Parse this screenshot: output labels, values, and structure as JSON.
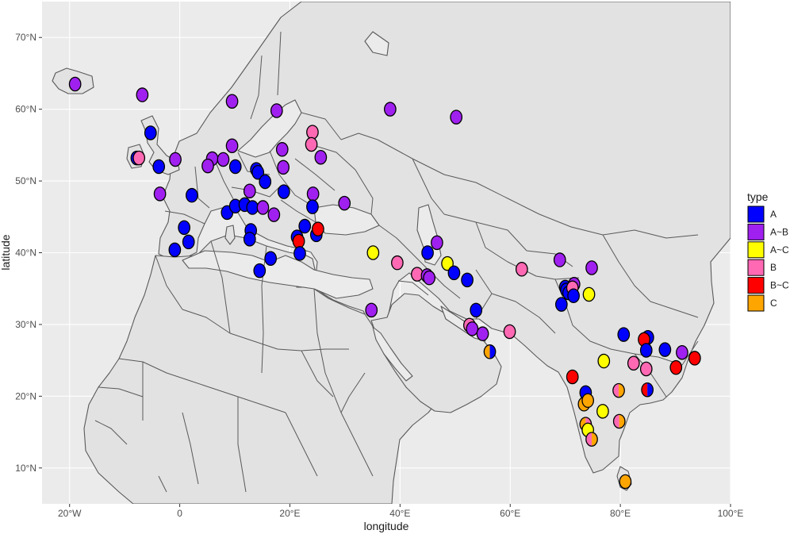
{
  "chart_data": {
    "type": "scatter",
    "xlabel": "longitude",
    "ylabel": "latitude",
    "xlim": [
      -25,
      100
    ],
    "ylim": [
      5,
      75
    ],
    "x_ticks": [
      {
        "value": -20,
        "label": "20°W"
      },
      {
        "value": 0,
        "label": "0"
      },
      {
        "value": 20,
        "label": "20°E"
      },
      {
        "value": 40,
        "label": "40°E"
      },
      {
        "value": 60,
        "label": "60°E"
      },
      {
        "value": 80,
        "label": "80°E"
      },
      {
        "value": 100,
        "label": "100°E"
      }
    ],
    "y_ticks": [
      {
        "value": 10,
        "label": "10°N"
      },
      {
        "value": 20,
        "label": "20°N"
      },
      {
        "value": 30,
        "label": "30°N"
      },
      {
        "value": 40,
        "label": "40°N"
      },
      {
        "value": 50,
        "label": "50°N"
      },
      {
        "value": 60,
        "label": "60°N"
      },
      {
        "value": 70,
        "label": "70°N"
      }
    ],
    "grid": true,
    "legend": {
      "title": "type",
      "placement": "right",
      "entries": [
        {
          "label": "A",
          "color": "#0000ff"
        },
        {
          "label": "A~B",
          "color": "#a020f0"
        },
        {
          "label": "A~C",
          "color": "#ffff00"
        },
        {
          "label": "B",
          "color": "#ff69b4"
        },
        {
          "label": "B~C",
          "color": "#ff0000"
        },
        {
          "label": "C",
          "color": "#ffa500"
        }
      ]
    },
    "colors": {
      "A": "#0000ff",
      "A~B": "#a020f0",
      "A~C": "#ffff00",
      "B": "#ff69b4",
      "B~C": "#ff0000",
      "C": "#ffa500",
      "panel": "#ebebeb",
      "land": "#e2e2e2",
      "border": "#595959",
      "grid": "#ffffff"
    },
    "points": [
      {
        "lon": -19,
        "lat": 63.5,
        "type": "A~B"
      },
      {
        "lon": -6.8,
        "lat": 62,
        "type": "A~B"
      },
      {
        "lon": 9.5,
        "lat": 61.1,
        "type": "A~B"
      },
      {
        "lon": 17.6,
        "lat": 59.8,
        "type": "A~B"
      },
      {
        "lon": 38.2,
        "lat": 60,
        "type": "A~B"
      },
      {
        "lon": 50.2,
        "lat": 58.9,
        "type": "A~B"
      },
      {
        "lon": -5.3,
        "lat": 56.7,
        "type": "A"
      },
      {
        "lon": 24.1,
        "lat": 56.8,
        "type": "B"
      },
      {
        "lon": 23.9,
        "lat": 55.1,
        "type": "B"
      },
      {
        "lon": 9.5,
        "lat": 54.9,
        "type": "A~B"
      },
      {
        "lon": 18.6,
        "lat": 54.4,
        "type": "A~B"
      },
      {
        "lon": -7.8,
        "lat": 53.2,
        "type": "A"
      },
      {
        "lon": -7.4,
        "lat": 53.2,
        "type": "B"
      },
      {
        "lon": -0.8,
        "lat": 53,
        "type": "A~B"
      },
      {
        "lon": 5.9,
        "lat": 53.1,
        "type": "A~B"
      },
      {
        "lon": 7.9,
        "lat": 53,
        "type": "A~B"
      },
      {
        "lon": 25.6,
        "lat": 53.3,
        "type": "A~B"
      },
      {
        "lon": -3.8,
        "lat": 52,
        "type": "A"
      },
      {
        "lon": 5.1,
        "lat": 52.1,
        "type": "A~B"
      },
      {
        "lon": 10.1,
        "lat": 52,
        "type": "A"
      },
      {
        "lon": 13.9,
        "lat": 51.6,
        "type": "A"
      },
      {
        "lon": 14.2,
        "lat": 51.2,
        "type": "A"
      },
      {
        "lon": 18.8,
        "lat": 51.9,
        "type": "A~B"
      },
      {
        "lon": 15.5,
        "lat": 49.9,
        "type": "A"
      },
      {
        "lon": -3.6,
        "lat": 48.2,
        "type": "A~B"
      },
      {
        "lon": 2.2,
        "lat": 48,
        "type": "A"
      },
      {
        "lon": 12.7,
        "lat": 48.6,
        "type": "A~B"
      },
      {
        "lon": 18.9,
        "lat": 48.5,
        "type": "A"
      },
      {
        "lon": 24.2,
        "lat": 48.2,
        "type": "A~B"
      },
      {
        "lon": 29.9,
        "lat": 46.9,
        "type": "A~B"
      },
      {
        "lon": 8.6,
        "lat": 45.6,
        "type": "A"
      },
      {
        "lon": 10.1,
        "lat": 46.5,
        "type": "A"
      },
      {
        "lon": 11.8,
        "lat": 46.7,
        "type": "A"
      },
      {
        "lon": 13.2,
        "lat": 46.3,
        "type": "A"
      },
      {
        "lon": 15.1,
        "lat": 46.3,
        "type": "A~B"
      },
      {
        "lon": 17.1,
        "lat": 45.3,
        "type": "A~B"
      },
      {
        "lon": 24.1,
        "lat": 46.4,
        "type": "A"
      },
      {
        "lon": 0.8,
        "lat": 43.5,
        "type": "A"
      },
      {
        "lon": 12.9,
        "lat": 43.1,
        "type": "A"
      },
      {
        "lon": 12.7,
        "lat": 41.9,
        "type": "A"
      },
      {
        "lon": 1.6,
        "lat": 41.5,
        "type": "A"
      },
      {
        "lon": -0.9,
        "lat": 40.4,
        "type": "A"
      },
      {
        "lon": 21.3,
        "lat": 42.2,
        "type": "A"
      },
      {
        "lon": 22.7,
        "lat": 43.7,
        "type": "A"
      },
      {
        "lon": 21.6,
        "lat": 41.6,
        "type": "B~C"
      },
      {
        "lon": 24.8,
        "lat": 42.5,
        "type": "A"
      },
      {
        "lon": 25.1,
        "lat": 43.3,
        "type": "B~C"
      },
      {
        "lon": 21.8,
        "lat": 39.9,
        "type": "A"
      },
      {
        "lon": 16.5,
        "lat": 39.2,
        "type": "A"
      },
      {
        "lon": 14.5,
        "lat": 37.5,
        "type": "A"
      },
      {
        "lon": 35.1,
        "lat": 40,
        "type": "A~C"
      },
      {
        "lon": 39.5,
        "lat": 38.6,
        "type": "B"
      },
      {
        "lon": 43.1,
        "lat": 37,
        "type": "B"
      },
      {
        "lon": 45,
        "lat": 40,
        "type": "A"
      },
      {
        "lon": 46.7,
        "lat": 41.4,
        "type": "A~B"
      },
      {
        "lon": 44.9,
        "lat": 36.8,
        "type": "A~B"
      },
      {
        "lon": 45.3,
        "lat": 36.5,
        "type": "A~B"
      },
      {
        "lon": 48.6,
        "lat": 38.5,
        "type": "A~C"
      },
      {
        "lon": 49.8,
        "lat": 37.2,
        "type": "A"
      },
      {
        "lon": 52.2,
        "lat": 36.2,
        "type": "A"
      },
      {
        "lon": 62.1,
        "lat": 37.7,
        "type": "B"
      },
      {
        "lon": 34.8,
        "lat": 32,
        "type": "A~B"
      },
      {
        "lon": 53.8,
        "lat": 32,
        "type": "A"
      },
      {
        "lon": 52.6,
        "lat": 29.9,
        "type": "B"
      },
      {
        "lon": 53.1,
        "lat": 29.4,
        "type": "A~B"
      },
      {
        "lon": 55,
        "lat": 28.7,
        "type": "A~B"
      },
      {
        "lon": 59.9,
        "lat": 29,
        "type": "B"
      },
      {
        "lon": 56.3,
        "lat": 26.2,
        "type": "C",
        "type2": "A"
      },
      {
        "lon": 69,
        "lat": 39,
        "type": "A~B"
      },
      {
        "lon": 74.8,
        "lat": 37.9,
        "type": "A~B"
      },
      {
        "lon": 70,
        "lat": 35.2,
        "type": "A"
      },
      {
        "lon": 70.2,
        "lat": 34.8,
        "type": "A"
      },
      {
        "lon": 70.6,
        "lat": 34.4,
        "type": "A"
      },
      {
        "lon": 71.6,
        "lat": 35.6,
        "type": "A~B"
      },
      {
        "lon": 71.3,
        "lat": 35.1,
        "type": "B"
      },
      {
        "lon": 71.5,
        "lat": 34,
        "type": "A"
      },
      {
        "lon": 69.3,
        "lat": 32.8,
        "type": "A"
      },
      {
        "lon": 74.3,
        "lat": 34.2,
        "type": "A~C"
      },
      {
        "lon": 80.6,
        "lat": 28.6,
        "type": "A"
      },
      {
        "lon": 85,
        "lat": 28.2,
        "type": "A"
      },
      {
        "lon": 84.3,
        "lat": 27.9,
        "type": "B~C"
      },
      {
        "lon": 84.7,
        "lat": 26.4,
        "type": "A"
      },
      {
        "lon": 88.1,
        "lat": 26.5,
        "type": "A"
      },
      {
        "lon": 91.2,
        "lat": 26.1,
        "type": "A~B"
      },
      {
        "lon": 93.5,
        "lat": 25.3,
        "type": "B~C"
      },
      {
        "lon": 90.1,
        "lat": 24,
        "type": "B~C"
      },
      {
        "lon": 82.4,
        "lat": 24.6,
        "type": "B"
      },
      {
        "lon": 84.7,
        "lat": 23.8,
        "type": "B"
      },
      {
        "lon": 77,
        "lat": 24.9,
        "type": "A~C"
      },
      {
        "lon": 71.3,
        "lat": 22.7,
        "type": "B~C"
      },
      {
        "lon": 73.7,
        "lat": 20.5,
        "type": "A"
      },
      {
        "lon": 79.7,
        "lat": 20.8,
        "type": "B",
        "type2": "C"
      },
      {
        "lon": 84.9,
        "lat": 20.9,
        "type": "B~C",
        "type2": "A"
      },
      {
        "lon": 73.4,
        "lat": 18.9,
        "type": "C"
      },
      {
        "lon": 74.1,
        "lat": 19.4,
        "type": "C"
      },
      {
        "lon": 76.8,
        "lat": 17.9,
        "type": "A~C"
      },
      {
        "lon": 79.8,
        "lat": 16.5,
        "type": "B",
        "type2": "C"
      },
      {
        "lon": 73.7,
        "lat": 16.1,
        "type": "C",
        "type2": "B"
      },
      {
        "lon": 74.1,
        "lat": 15.3,
        "type": "A~C"
      },
      {
        "lon": 74.8,
        "lat": 14,
        "type": "B",
        "type2": "C"
      },
      {
        "lon": 80.9,
        "lat": 8.1,
        "type": "C"
      }
    ]
  }
}
